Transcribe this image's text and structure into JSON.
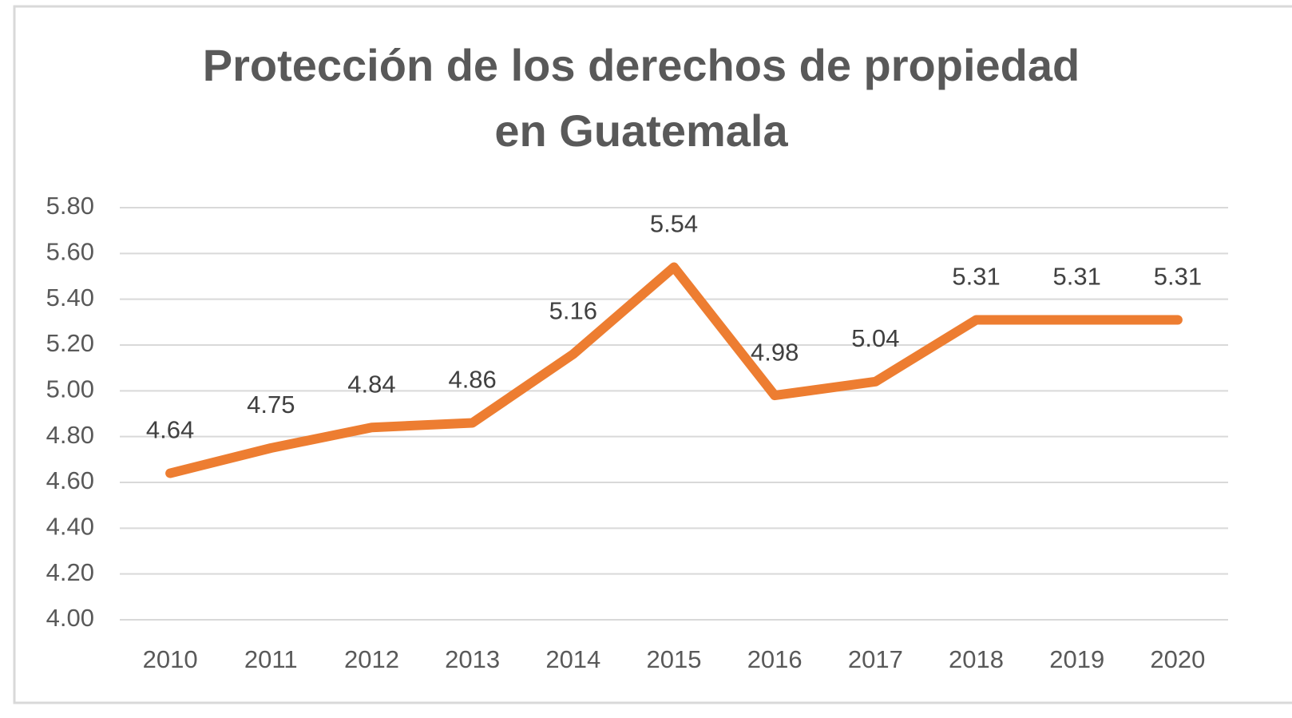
{
  "chart_data": {
    "type": "line",
    "title": [
      "Protección de los derechos de propiedad",
      "en Guatemala"
    ],
    "categories": [
      "2010",
      "2011",
      "2012",
      "2013",
      "2014",
      "2015",
      "2016",
      "2017",
      "2018",
      "2019",
      "2020"
    ],
    "series": [
      {
        "name": "Protección de los derechos de propiedad",
        "color": "#ED7D31",
        "values": [
          4.64,
          4.75,
          4.84,
          4.86,
          5.16,
          5.54,
          4.98,
          5.04,
          5.31,
          5.31,
          5.31
        ]
      }
    ],
    "ylim": [
      4.0,
      5.8
    ],
    "yticks": [
      {
        "value": 4.0,
        "label": "4.00"
      },
      {
        "value": 4.2,
        "label": "4.20"
      },
      {
        "value": 4.4,
        "label": "4.40"
      },
      {
        "value": 4.6,
        "label": "4.60"
      },
      {
        "value": 4.8,
        "label": "4.80"
      },
      {
        "value": 5.0,
        "label": "5.00"
      },
      {
        "value": 5.2,
        "label": "5.20"
      },
      {
        "value": 5.4,
        "label": "5.40"
      },
      {
        "value": 5.6,
        "label": "5.60"
      },
      {
        "value": 5.8,
        "label": "5.80"
      }
    ],
    "grid": true
  }
}
